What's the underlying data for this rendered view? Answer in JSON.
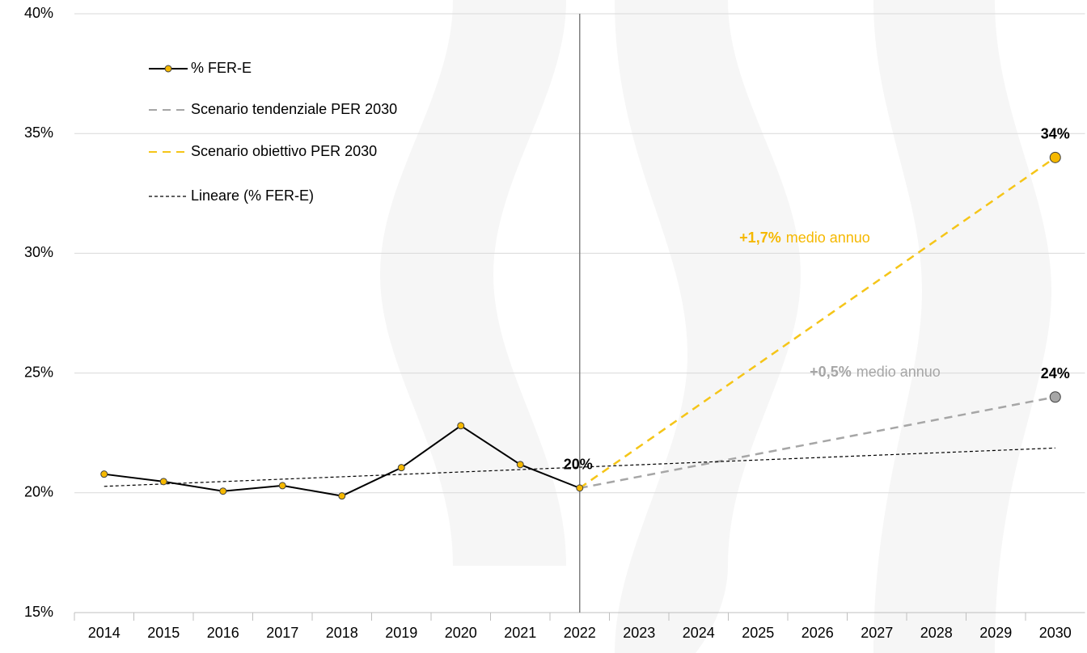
{
  "chart_data": {
    "type": "line",
    "categories": [
      "2014",
      "2015",
      "2016",
      "2017",
      "2018",
      "2019",
      "2020",
      "2021",
      "2022",
      "2023",
      "2024",
      "2025",
      "2026",
      "2027",
      "2028",
      "2029",
      "2030"
    ],
    "series": [
      {
        "name": "% FER-E",
        "color": "#000000",
        "marker_color": "#f5b800",
        "dash": "solid",
        "markers": "all",
        "values": [
          20.78,
          20.47,
          20.07,
          20.3,
          19.87,
          21.05,
          22.8,
          21.18,
          20.2,
          null,
          null,
          null,
          null,
          null,
          null,
          null,
          null
        ],
        "value_labels": [
          null,
          null,
          null,
          null,
          null,
          null,
          null,
          null,
          "20%",
          null,
          null,
          null,
          null,
          null,
          null,
          null,
          null
        ]
      },
      {
        "name": "Scenario tendenziale PER 2030",
        "color": "#a6a6a6",
        "marker_color": "#a6a6a6",
        "dash": "long",
        "markers": "last",
        "values": [
          null,
          null,
          null,
          null,
          null,
          null,
          null,
          null,
          20.2,
          20.675,
          21.15,
          21.625,
          22.1,
          22.575,
          23.05,
          23.525,
          24
        ],
        "value_labels": [
          null,
          null,
          null,
          null,
          null,
          null,
          null,
          null,
          null,
          null,
          null,
          null,
          null,
          null,
          null,
          null,
          "24%"
        ]
      },
      {
        "name": "Scenario obiettivo PER 2030",
        "color": "#f5c518",
        "marker_color": "#f5b800",
        "dash": "long",
        "markers": "last",
        "values": [
          null,
          null,
          null,
          null,
          null,
          null,
          null,
          null,
          20.2,
          21.925,
          23.65,
          25.375,
          27.1,
          28.825,
          30.55,
          32.275,
          34
        ],
        "value_labels": [
          null,
          null,
          null,
          null,
          null,
          null,
          null,
          null,
          null,
          null,
          null,
          null,
          null,
          null,
          null,
          null,
          "34%"
        ]
      },
      {
        "name": "Lineare (% FER-E)",
        "color": "#000000",
        "dash": "short",
        "markers": "none",
        "values": [
          20.27,
          20.37,
          20.47,
          20.57,
          20.67,
          20.77,
          20.87,
          20.97,
          21.07,
          21.17,
          21.27,
          21.37,
          21.47,
          21.57,
          21.67,
          21.77,
          21.87
        ]
      }
    ],
    "annotations": [
      {
        "bold": "+1,7%",
        "text": "medio annuo",
        "color": "#f5b800"
      },
      {
        "bold": "+0,5%",
        "text": "medio annuo",
        "color": "#a6a6a6"
      }
    ],
    "divider": "2022",
    "ylim": [
      15,
      40
    ],
    "yticks": [
      {
        "value": 15,
        "label": "15%"
      },
      {
        "value": 20,
        "label": "20%"
      },
      {
        "value": 25,
        "label": "25%"
      },
      {
        "value": 30,
        "label": "30%"
      },
      {
        "value": 35,
        "label": "35%"
      },
      {
        "value": 40,
        "label": "40%"
      }
    ],
    "grid": true,
    "legend": "top-left"
  }
}
